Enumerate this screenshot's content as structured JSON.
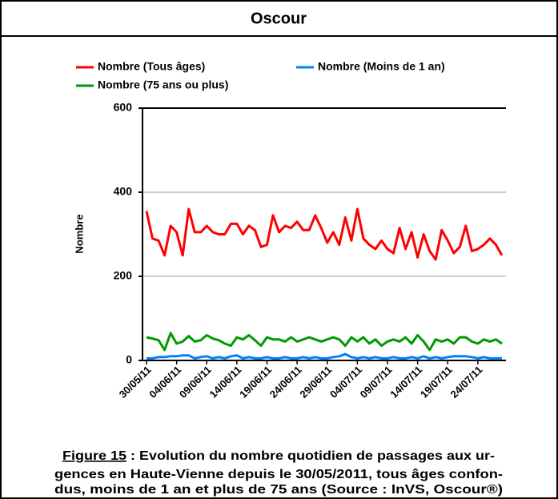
{
  "header": {
    "title": "Oscour"
  },
  "chart_data": {
    "type": "line",
    "y_label": "Nombre",
    "categories": [
      "30/05/11",
      null,
      null,
      null,
      null,
      "04/06/11",
      null,
      null,
      null,
      null,
      "09/06/11",
      null,
      null,
      null,
      null,
      "14/06/11",
      null,
      null,
      null,
      null,
      "19/06/11",
      null,
      null,
      null,
      null,
      "24/06/11",
      null,
      null,
      null,
      null,
      "29/06/11",
      null,
      null,
      null,
      null,
      "04/07/11",
      null,
      null,
      null,
      null,
      "09/07/11",
      null,
      null,
      null,
      null,
      "14/07/11",
      null,
      null,
      null,
      null,
      "19/07/11",
      null,
      null,
      null,
      null,
      "24/07/11",
      null,
      null,
      null,
      null
    ],
    "series": [
      {
        "name": "Nombre (Tous âges)",
        "color": "#ff0000",
        "values": [
          355,
          290,
          285,
          250,
          320,
          305,
          250,
          360,
          305,
          305,
          320,
          305,
          300,
          300,
          325,
          325,
          300,
          320,
          310,
          270,
          275,
          345,
          305,
          320,
          315,
          330,
          310,
          310,
          345,
          315,
          280,
          305,
          275,
          340,
          285,
          360,
          290,
          275,
          265,
          285,
          265,
          255,
          315,
          265,
          305,
          245,
          300,
          260,
          240,
          310,
          285,
          255,
          270,
          320,
          260,
          265,
          275,
          290,
          275,
          250
        ]
      },
      {
        "name": "Nombre (Moins de 1 an)",
        "color": "#0080ff",
        "values": [
          5,
          5,
          8,
          8,
          10,
          10,
          12,
          12,
          5,
          8,
          10,
          5,
          8,
          5,
          10,
          12,
          5,
          8,
          5,
          5,
          8,
          5,
          5,
          8,
          5,
          5,
          8,
          5,
          8,
          5,
          5,
          8,
          10,
          15,
          8,
          5,
          8,
          5,
          8,
          5,
          5,
          8,
          5,
          5,
          8,
          5,
          10,
          5,
          8,
          5,
          8,
          10,
          10,
          10,
          8,
          5,
          8,
          5,
          5,
          5
        ]
      },
      {
        "name": "Nombre (75 ans ou plus)",
        "color": "#009900",
        "values": [
          55,
          52,
          48,
          25,
          65,
          40,
          45,
          58,
          45,
          48,
          60,
          52,
          48,
          40,
          35,
          55,
          50,
          60,
          48,
          35,
          55,
          50,
          50,
          45,
          55,
          45,
          50,
          55,
          50,
          45,
          50,
          55,
          50,
          35,
          55,
          45,
          55,
          40,
          50,
          35,
          45,
          50,
          45,
          55,
          40,
          60,
          45,
          25,
          50,
          45,
          50,
          40,
          55,
          55,
          45,
          40,
          50,
          45,
          50,
          40
        ]
      }
    ],
    "ylim": [
      0,
      600
    ],
    "yticks": [
      0,
      200,
      400,
      600
    ],
    "grid": true
  },
  "caption": {
    "label": "Figure 15",
    "lines": [
      " : Evolution du nombre quotidien de passages aux ur-",
      "gences en Haute-Vienne depuis le 30/05/2011, tous âges confon-",
      "dus, moins de 1 an et plus de 75 ans (Source : InVS, Oscour®)"
    ]
  }
}
